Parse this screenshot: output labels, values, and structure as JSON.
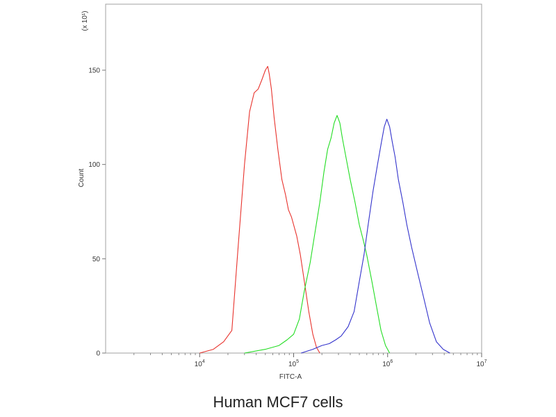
{
  "chart_data": {
    "type": "line",
    "title": "",
    "caption": "Human MCF7 cells",
    "xlabel": "FITC-A",
    "ylabel": "Count",
    "y_multiplier_label": "(x 10¹)",
    "x_scale": "log",
    "xlim": [
      1000,
      10000000
    ],
    "ylim": [
      0,
      185
    ],
    "x_ticks": [
      {
        "value": 10000,
        "base": "10",
        "exp": "4"
      },
      {
        "value": 100000,
        "base": "10",
        "exp": "5"
      },
      {
        "value": 1000000,
        "base": "10",
        "exp": "6"
      },
      {
        "value": 10000000,
        "base": "10",
        "exp": "7"
      }
    ],
    "y_ticks": [
      {
        "value": 0,
        "label": "0"
      },
      {
        "value": 50,
        "label": "50"
      },
      {
        "value": 100,
        "label": "100"
      },
      {
        "value": 150,
        "label": "150"
      }
    ],
    "grid": false,
    "legend": false,
    "series": [
      {
        "color": "#e8322c",
        "x": [
          10000,
          14000,
          18000,
          22000,
          26000,
          30000,
          34000,
          38000,
          42000,
          46000,
          50000,
          53000,
          55000,
          58000,
          62000,
          68000,
          75000,
          82000,
          88000,
          95000,
          100000,
          108000,
          118000,
          130000,
          145000,
          160000,
          175000,
          190000
        ],
        "y": [
          0,
          2,
          6,
          12,
          60,
          100,
          128,
          138,
          140,
          145,
          150,
          152,
          148,
          140,
          125,
          108,
          92,
          84,
          76,
          72,
          68,
          62,
          52,
          38,
          22,
          10,
          3,
          0
        ]
      },
      {
        "color": "#22dd22",
        "x": [
          30000,
          50000,
          70000,
          85000,
          100000,
          115000,
          130000,
          150000,
          170000,
          190000,
          210000,
          230000,
          250000,
          270000,
          290000,
          310000,
          330000,
          360000,
          400000,
          450000,
          500000,
          550000,
          600000,
          680000,
          760000,
          850000,
          950000,
          1050000
        ],
        "y": [
          0,
          2,
          4,
          7,
          10,
          18,
          33,
          48,
          65,
          80,
          96,
          108,
          114,
          122,
          126,
          122,
          114,
          104,
          92,
          80,
          68,
          60,
          52,
          38,
          25,
          12,
          4,
          0
        ]
      },
      {
        "color": "#3333cc",
        "x": [
          120000,
          160000,
          200000,
          240000,
          280000,
          320000,
          380000,
          440000,
          500000,
          560000,
          620000,
          700000,
          780000,
          860000,
          920000,
          980000,
          1050000,
          1120000,
          1200000,
          1300000,
          1450000,
          1600000,
          1800000,
          2100000,
          2400000,
          2800000,
          3300000,
          3900000,
          4600000
        ],
        "y": [
          0,
          2,
          4,
          5,
          7,
          9,
          14,
          22,
          38,
          52,
          68,
          86,
          100,
          112,
          120,
          124,
          120,
          112,
          104,
          92,
          80,
          68,
          56,
          42,
          30,
          16,
          6,
          2,
          0
        ]
      }
    ]
  }
}
